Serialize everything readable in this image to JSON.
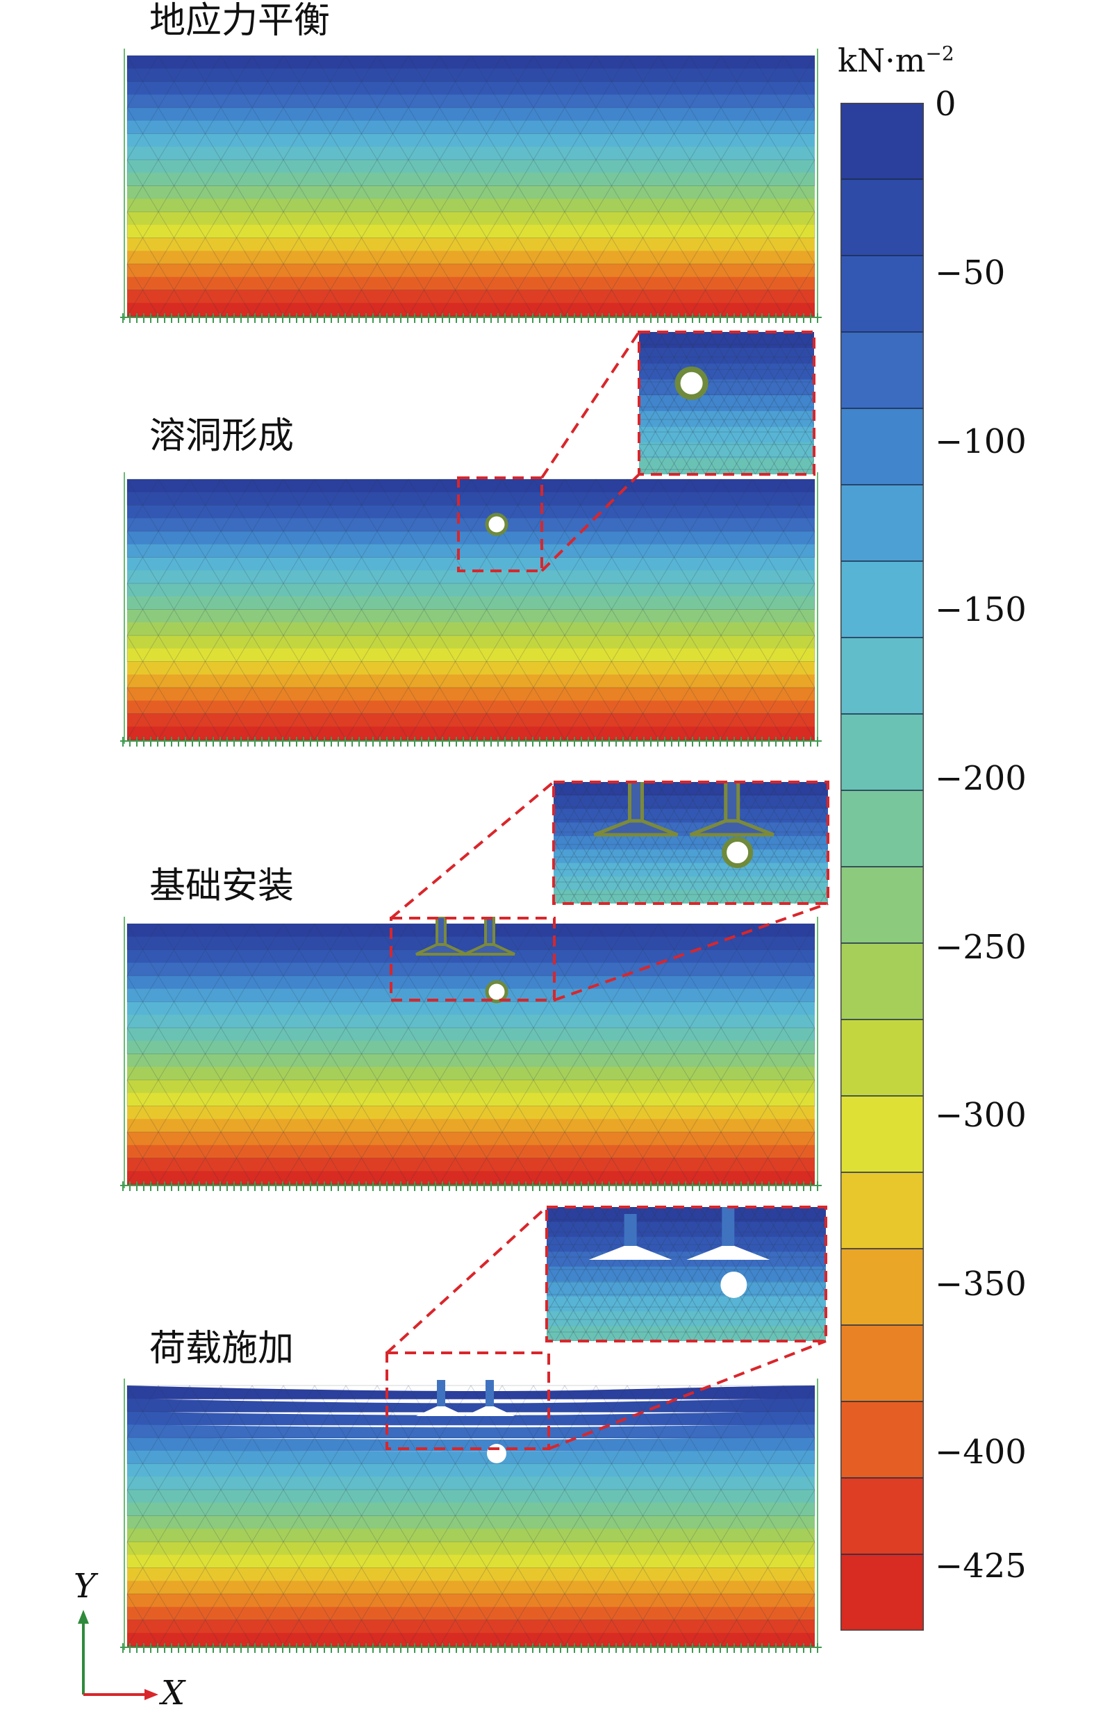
{
  "stages": [
    {
      "id": "stage-1",
      "title": "地应力平衡",
      "cavity": false,
      "foundations": false,
      "loaded": false
    },
    {
      "id": "stage-2",
      "title": "溶洞形成",
      "cavity": true,
      "foundations": false,
      "loaded": false
    },
    {
      "id": "stage-3",
      "title": "基础安装",
      "cavity": true,
      "foundations": true,
      "loaded": false
    },
    {
      "id": "stage-4",
      "title": "荷载施加",
      "cavity": true,
      "foundations": true,
      "loaded": true
    }
  ],
  "legend": {
    "unit": "kN·m",
    "unit_exponent": "−2",
    "ticks": [
      "0",
      "−50",
      "−100",
      "−150",
      "−200",
      "−250",
      "−300",
      "−350",
      "−400",
      "−425"
    ],
    "colors": [
      "#2b3f9c",
      "#2f4ba8",
      "#3358b4",
      "#3b6cc0",
      "#4185cc",
      "#4da0d3",
      "#58b4d4",
      "#61bdc9",
      "#6ac2b5",
      "#78c79c",
      "#8cca7d",
      "#a6cf5a",
      "#c3d640",
      "#dfe035",
      "#e8c72d",
      "#eaa626",
      "#e98224",
      "#e55f24",
      "#de3e24",
      "#d82b22"
    ]
  },
  "axes": {
    "y": "Y",
    "x": "X"
  }
}
